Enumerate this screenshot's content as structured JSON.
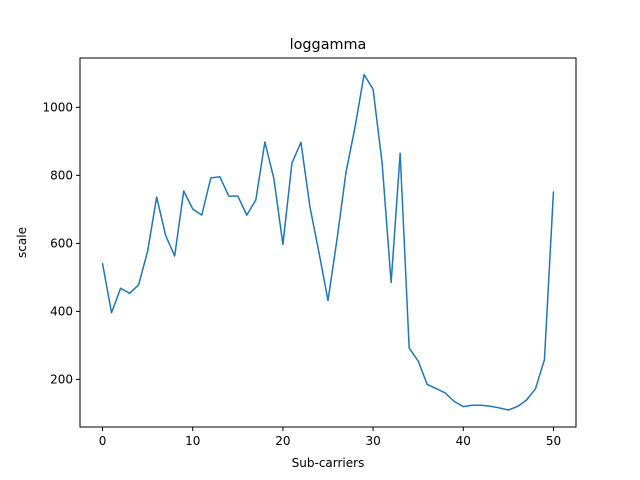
{
  "chart_data": {
    "type": "line",
    "title": "loggamma",
    "xlabel": "Sub-carriers",
    "ylabel": "scale",
    "xlim": [
      -2.5,
      52.5
    ],
    "ylim": [
      60,
      1145
    ],
    "xticks": [
      0,
      10,
      20,
      30,
      40,
      50
    ],
    "yticks": [
      200,
      400,
      600,
      800,
      1000
    ],
    "grid": false,
    "line_color": "#1f77b4",
    "x": [
      0,
      1,
      2,
      3,
      4,
      5,
      6,
      7,
      8,
      9,
      10,
      11,
      12,
      13,
      14,
      15,
      16,
      17,
      18,
      19,
      20,
      21,
      22,
      23,
      24,
      25,
      26,
      27,
      28,
      29,
      30,
      31,
      32,
      33,
      34,
      35,
      36,
      37,
      38,
      39,
      40,
      41,
      42,
      43,
      44,
      45,
      46,
      47,
      48,
      49,
      50
    ],
    "series": [
      {
        "values": [
          540,
          396,
          468,
          453,
          478,
          577,
          736,
          623,
          563,
          754,
          701,
          683,
          792,
          796,
          739,
          739,
          683,
          728,
          898,
          790,
          597,
          836,
          897,
          707,
          573,
          432,
          612,
          810,
          942,
          1096,
          1053,
          836,
          485,
          865,
          292,
          254,
          185,
          173,
          160,
          135,
          120,
          124,
          124,
          121,
          116,
          110,
          120,
          139,
          172,
          258,
          751
        ]
      }
    ]
  }
}
